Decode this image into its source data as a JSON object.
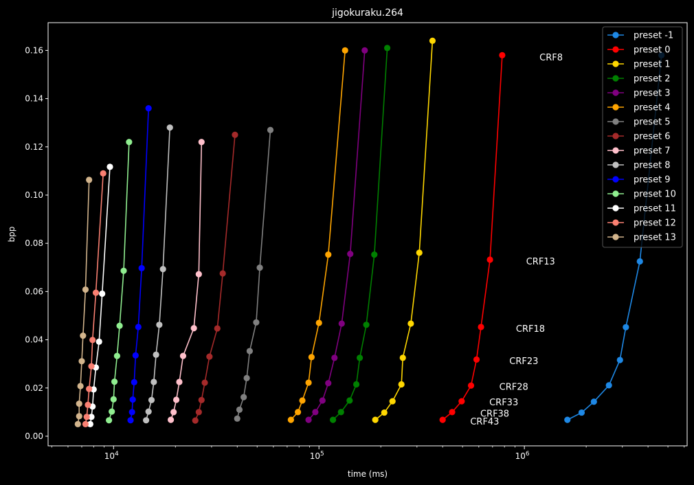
{
  "chart_data": {
    "type": "line",
    "title": "jigokuraku.264",
    "xlabel": "time (ms)",
    "ylabel": "bpp",
    "xscale": "log",
    "xlim": [
      4800,
      6200000
    ],
    "ylim": [
      -0.004,
      0.1715
    ],
    "xticks": [
      {
        "value": 10000,
        "base": "10",
        "exp": "4"
      },
      {
        "value": 100000,
        "base": "10",
        "exp": "5"
      },
      {
        "value": 1000000,
        "base": "10",
        "exp": "6"
      }
    ],
    "yticks": [
      0.0,
      0.02,
      0.04,
      0.06,
      0.08,
      0.1,
      0.12,
      0.14,
      0.16
    ],
    "ytick_labels": [
      "0.00",
      "0.02",
      "0.04",
      "0.06",
      "0.08",
      "0.10",
      "0.12",
      "0.14",
      "0.16"
    ],
    "grid": false,
    "legend_position": "top-right",
    "series": [
      {
        "name": "preset -1",
        "color": "#1e88e5",
        "x": [
          1620000,
          1900000,
          2180000,
          2580000,
          2920000,
          3120000,
          3650000,
          4650000
        ],
        "y": [
          0.0068,
          0.0098,
          0.0143,
          0.0211,
          0.0316,
          0.0452,
          0.0725,
          0.158
        ]
      },
      {
        "name": "preset 0",
        "color": "#ff0000",
        "x": [
          400000,
          445000,
          495000,
          550000,
          585000,
          615000,
          680000,
          780000
        ],
        "y": [
          0.0068,
          0.01,
          0.0145,
          0.021,
          0.0318,
          0.0453,
          0.0732,
          0.158
        ]
      },
      {
        "name": "preset 1",
        "color": "#ffd700",
        "x": [
          188000,
          208000,
          228000,
          252000,
          256000,
          280000,
          308000,
          357000
        ],
        "y": [
          0.0068,
          0.0098,
          0.0145,
          0.0215,
          0.0325,
          0.0467,
          0.0761,
          0.164
        ]
      },
      {
        "name": "preset 2",
        "color": "#008000",
        "x": [
          117000,
          128000,
          141000,
          152000,
          158000,
          170000,
          186000,
          215000
        ],
        "y": [
          0.0068,
          0.01,
          0.0148,
          0.0215,
          0.0325,
          0.0462,
          0.0753,
          0.161
        ]
      },
      {
        "name": "preset 3",
        "color": "#800080",
        "x": [
          89000,
          96000,
          104000,
          111000,
          119000,
          129000,
          142000,
          167000
        ],
        "y": [
          0.0068,
          0.01,
          0.0148,
          0.022,
          0.0325,
          0.0467,
          0.0756,
          0.16
        ]
      },
      {
        "name": "preset 4",
        "color": "#ffa500",
        "x": [
          73000,
          79000,
          83000,
          89000,
          92000,
          100000,
          111000,
          134000
        ],
        "y": [
          0.0068,
          0.01,
          0.0148,
          0.0222,
          0.0328,
          0.047,
          0.0753,
          0.16
        ]
      },
      {
        "name": "preset 5",
        "color": "#808080",
        "x": [
          40000,
          41000,
          43000,
          44500,
          46000,
          49500,
          51500,
          58000
        ],
        "y": [
          0.0073,
          0.011,
          0.0162,
          0.0241,
          0.0353,
          0.0472,
          0.0699,
          0.127
        ]
      },
      {
        "name": "preset 6",
        "color": "#a52a2a",
        "x": [
          25000,
          26000,
          26800,
          27800,
          29300,
          32000,
          34000,
          39000
        ],
        "y": [
          0.0065,
          0.01,
          0.015,
          0.0222,
          0.033,
          0.0447,
          0.0675,
          0.125
        ]
      },
      {
        "name": "preset 7",
        "color": "#ffc0cb",
        "x": [
          19000,
          19600,
          20200,
          20900,
          21800,
          24600,
          26000,
          26800
        ],
        "y": [
          0.0068,
          0.01,
          0.0151,
          0.0225,
          0.0333,
          0.0448,
          0.0672,
          0.122
        ]
      },
      {
        "name": "preset 8",
        "color": "#c0c0c0",
        "x": [
          14400,
          14800,
          15300,
          15700,
          16100,
          16700,
          17400,
          18800
        ],
        "y": [
          0.0066,
          0.0102,
          0.015,
          0.0225,
          0.0338,
          0.0462,
          0.0693,
          0.128
        ]
      },
      {
        "name": "preset 9",
        "color": "#0000ff",
        "x": [
          12100,
          12300,
          12400,
          12600,
          12800,
          13200,
          13700,
          14800
        ],
        "y": [
          0.0066,
          0.01,
          0.0152,
          0.0224,
          0.0335,
          0.0453,
          0.0697,
          0.136
        ]
      },
      {
        "name": "preset 10",
        "color": "#90ee90",
        "x": [
          9500,
          9800,
          10000,
          10100,
          10400,
          10700,
          11200,
          11900
        ],
        "y": [
          0.0066,
          0.0102,
          0.0153,
          0.0226,
          0.0333,
          0.0458,
          0.0686,
          0.122
        ]
      },
      {
        "name": "preset 11",
        "color": "#ffffff",
        "x": [
          7700,
          7800,
          7900,
          8000,
          8200,
          8500,
          8800,
          9600
        ],
        "y": [
          0.005,
          0.008,
          0.0123,
          0.0194,
          0.0285,
          0.0392,
          0.0591,
          0.1117
        ]
      },
      {
        "name": "preset 12",
        "color": "#fa8072",
        "x": [
          7300,
          7400,
          7500,
          7600,
          7800,
          7900,
          8200,
          8900
        ],
        "y": [
          0.005,
          0.008,
          0.013,
          0.0196,
          0.029,
          0.0399,
          0.0595,
          0.109
        ]
      },
      {
        "name": "preset 13",
        "color": "#d2b48c",
        "x": [
          6700,
          6800,
          6800,
          6900,
          7000,
          7100,
          7300,
          7600
        ],
        "y": [
          0.005,
          0.0083,
          0.0135,
          0.0208,
          0.0311,
          0.0417,
          0.0608,
          0.1063
        ]
      }
    ],
    "annotations": [
      {
        "text": "CRF43",
        "x": 545000,
        "y": 0.006
      },
      {
        "text": "CRF38",
        "x": 610000,
        "y": 0.0093
      },
      {
        "text": "CRF33",
        "x": 675000,
        "y": 0.014
      },
      {
        "text": "CRF28",
        "x": 755000,
        "y": 0.0203
      },
      {
        "text": "CRF23",
        "x": 845000,
        "y": 0.031
      },
      {
        "text": "CRF18",
        "x": 910000,
        "y": 0.0445
      },
      {
        "text": "CRF13",
        "x": 1020000,
        "y": 0.0723
      },
      {
        "text": "CRF8",
        "x": 1185000,
        "y": 0.157
      }
    ]
  }
}
